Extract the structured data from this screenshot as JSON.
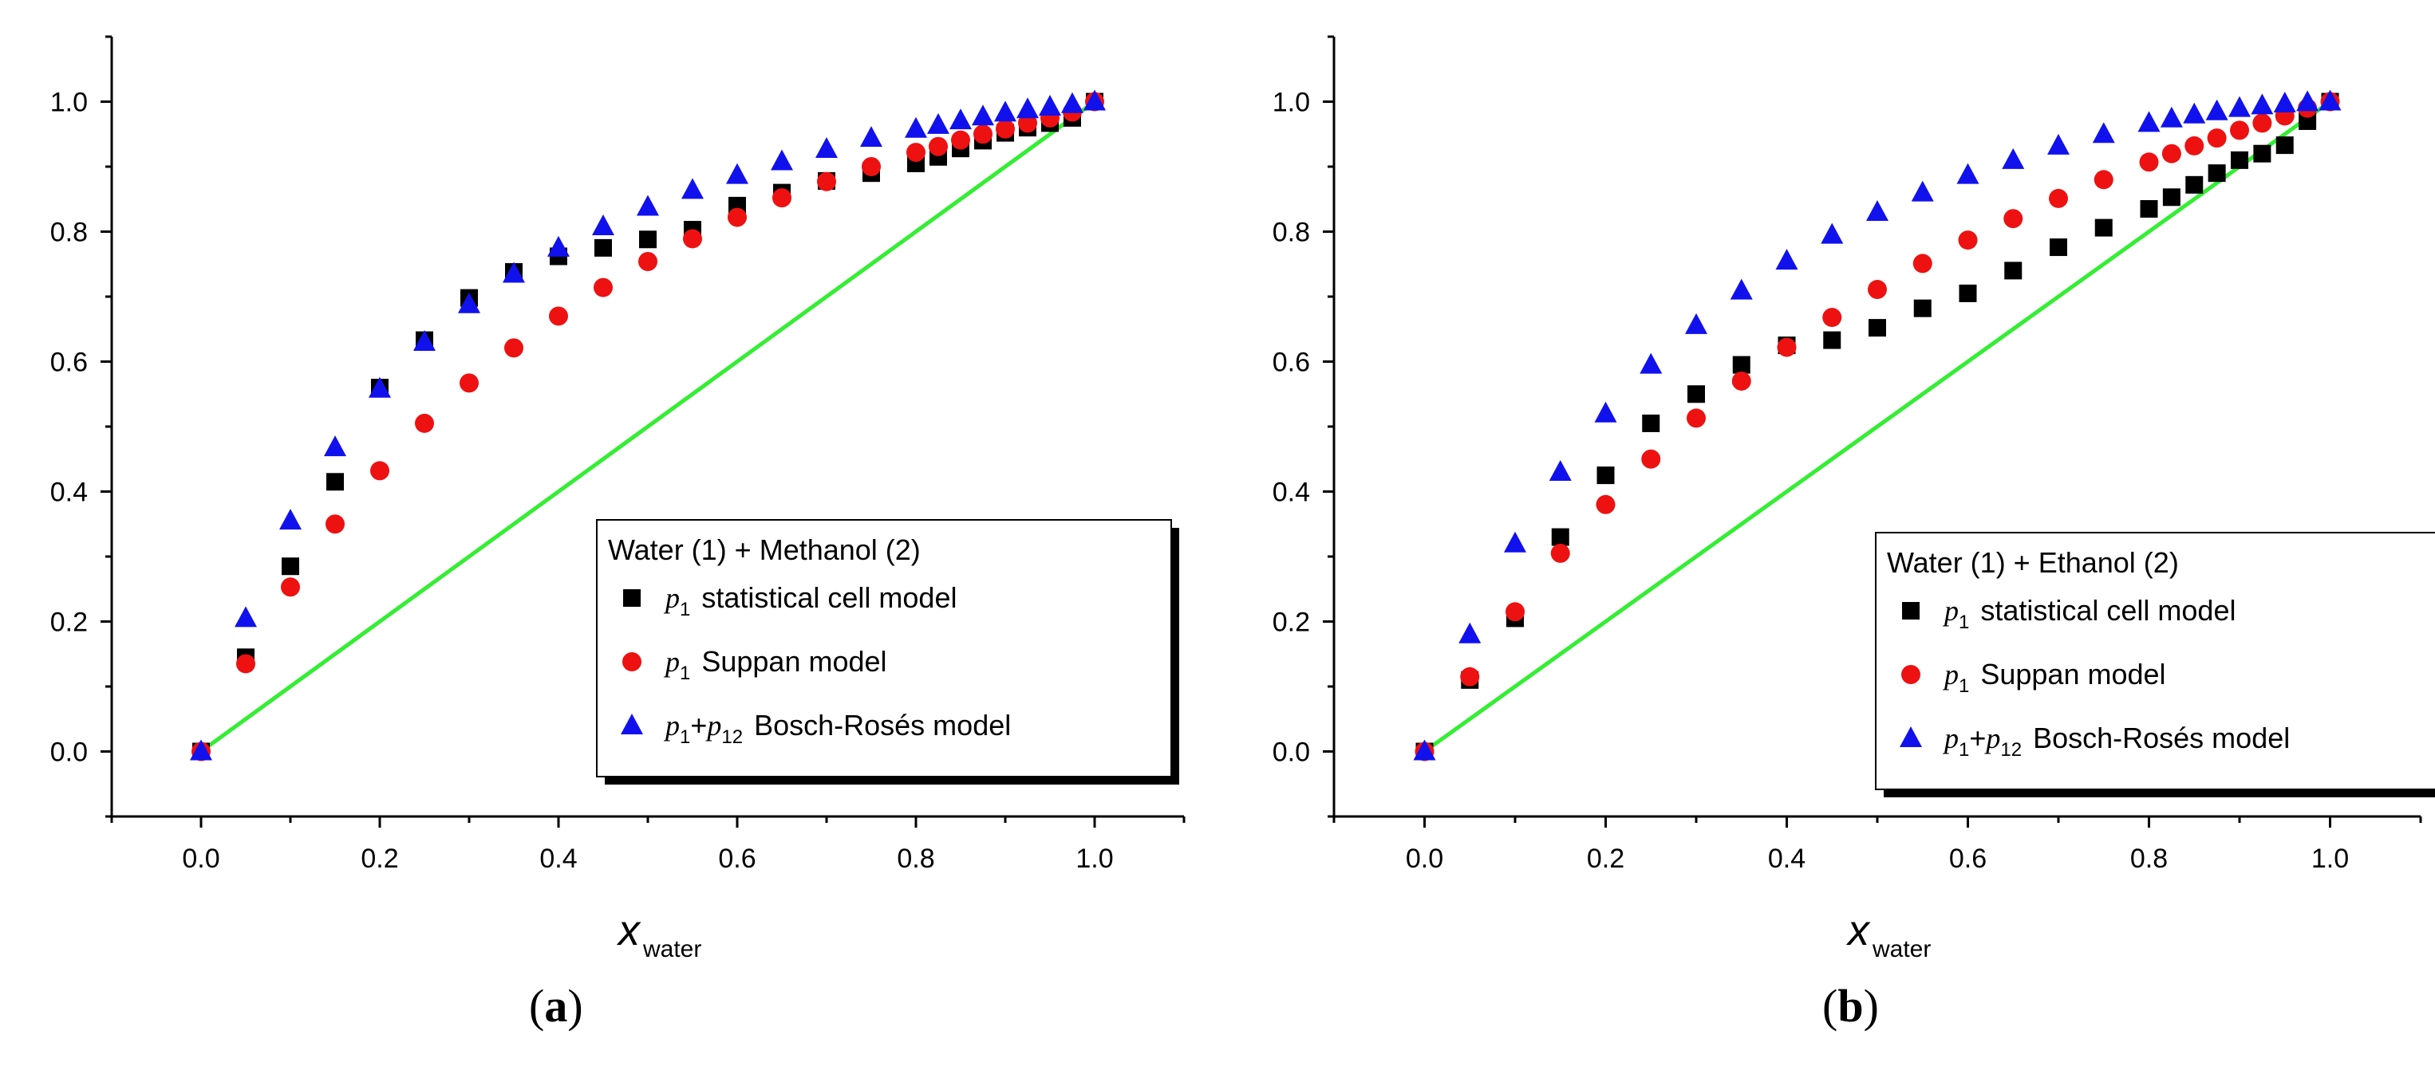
{
  "chart_data": [
    {
      "type": "scatter",
      "panel": "a",
      "caption": "a",
      "mixture_title": "Water (1) + Methanol (2)",
      "xlabel": "x",
      "xlabel_sub": "water",
      "xlim": [
        -0.1,
        1.1
      ],
      "ylim": [
        -0.1,
        1.1
      ],
      "xticks": [
        "0.0",
        "0.2",
        "0.4",
        "0.6",
        "0.8",
        "1.0"
      ],
      "yticks": [
        "0.0",
        "0.2",
        "0.4",
        "0.6",
        "0.8",
        "1.0"
      ],
      "legend_position": "bottom-right",
      "reference_line": {
        "x": [
          0,
          1
        ],
        "y": [
          0,
          1
        ],
        "color": "#33ee33"
      },
      "series": [
        {
          "name": "statistical cell model",
          "symbol": "p",
          "sub": "1",
          "marker": "square",
          "color": "#000000",
          "x": [
            0,
            0.05,
            0.1,
            0.15,
            0.2,
            0.25,
            0.3,
            0.35,
            0.4,
            0.45,
            0.5,
            0.55,
            0.6,
            0.65,
            0.7,
            0.75,
            0.8,
            0.825,
            0.85,
            0.875,
            0.9,
            0.925,
            0.95,
            0.975,
            1.0
          ],
          "y": [
            0,
            0.145,
            0.285,
            0.415,
            0.56,
            0.633,
            0.698,
            0.738,
            0.762,
            0.775,
            0.788,
            0.803,
            0.84,
            0.86,
            0.878,
            0.89,
            0.905,
            0.915,
            0.928,
            0.94,
            0.952,
            0.96,
            0.967,
            0.975,
            1.0
          ]
        },
        {
          "name": "Suppan model",
          "symbol": "p",
          "sub": "1",
          "marker": "circle",
          "color": "#ee1111",
          "x": [
            0,
            0.05,
            0.1,
            0.15,
            0.2,
            0.25,
            0.3,
            0.35,
            0.4,
            0.45,
            0.5,
            0.55,
            0.6,
            0.65,
            0.7,
            0.75,
            0.8,
            0.825,
            0.85,
            0.875,
            0.9,
            0.925,
            0.95,
            0.975,
            1.0
          ],
          "y": [
            0,
            0.135,
            0.253,
            0.35,
            0.432,
            0.505,
            0.567,
            0.621,
            0.67,
            0.714,
            0.754,
            0.789,
            0.822,
            0.852,
            0.877,
            0.9,
            0.922,
            0.931,
            0.941,
            0.95,
            0.958,
            0.967,
            0.975,
            0.984,
            1.0
          ]
        },
        {
          "name": "Bosch-Rosés model",
          "symbol": "p",
          "sub": "1",
          "symbol2": "p",
          "sub2": "12",
          "marker": "triangle",
          "color": "#1111ee",
          "x": [
            0,
            0.05,
            0.1,
            0.15,
            0.2,
            0.25,
            0.3,
            0.35,
            0.4,
            0.45,
            0.5,
            0.55,
            0.6,
            0.65,
            0.7,
            0.75,
            0.8,
            0.825,
            0.85,
            0.875,
            0.9,
            0.925,
            0.95,
            0.975,
            1.0
          ],
          "y": [
            0,
            0.205,
            0.355,
            0.468,
            0.558,
            0.63,
            0.688,
            0.735,
            0.775,
            0.808,
            0.838,
            0.864,
            0.887,
            0.908,
            0.927,
            0.944,
            0.958,
            0.964,
            0.971,
            0.977,
            0.983,
            0.988,
            0.992,
            0.996,
            1.0
          ]
        }
      ]
    },
    {
      "type": "scatter",
      "panel": "b",
      "caption": "b",
      "mixture_title": "Water (1) + Ethanol (2)",
      "xlabel": "x",
      "xlabel_sub": "water",
      "xlim": [
        -0.1,
        1.1
      ],
      "ylim": [
        -0.1,
        1.1
      ],
      "xticks": [
        "0.0",
        "0.2",
        "0.4",
        "0.6",
        "0.8",
        "1.0"
      ],
      "yticks": [
        "0.0",
        "0.2",
        "0.4",
        "0.6",
        "0.8",
        "1.0"
      ],
      "legend_position": "bottom-right",
      "reference_line": {
        "x": [
          0,
          1
        ],
        "y": [
          0,
          1
        ],
        "color": "#33ee33"
      },
      "series": [
        {
          "name": "statistical cell model",
          "symbol": "p",
          "sub": "1",
          "marker": "square",
          "color": "#000000",
          "x": [
            0,
            0.05,
            0.1,
            0.15,
            0.2,
            0.25,
            0.3,
            0.35,
            0.4,
            0.45,
            0.5,
            0.55,
            0.6,
            0.65,
            0.7,
            0.75,
            0.8,
            0.825,
            0.85,
            0.875,
            0.9,
            0.925,
            0.95,
            0.975,
            1.0
          ],
          "y": [
            0,
            0.11,
            0.205,
            0.33,
            0.425,
            0.505,
            0.55,
            0.595,
            0.625,
            0.633,
            0.652,
            0.682,
            0.705,
            0.74,
            0.776,
            0.806,
            0.835,
            0.853,
            0.872,
            0.89,
            0.91,
            0.92,
            0.933,
            0.97,
            1.0
          ]
        },
        {
          "name": "Suppan model",
          "symbol": "p",
          "sub": "1",
          "marker": "circle",
          "color": "#ee1111",
          "x": [
            0,
            0.05,
            0.1,
            0.15,
            0.2,
            0.25,
            0.3,
            0.35,
            0.4,
            0.45,
            0.5,
            0.55,
            0.6,
            0.65,
            0.7,
            0.75,
            0.8,
            0.825,
            0.85,
            0.875,
            0.9,
            0.925,
            0.95,
            0.975,
            1.0
          ],
          "y": [
            0,
            0.115,
            0.215,
            0.305,
            0.38,
            0.45,
            0.513,
            0.57,
            0.622,
            0.668,
            0.711,
            0.751,
            0.787,
            0.82,
            0.851,
            0.88,
            0.907,
            0.92,
            0.932,
            0.944,
            0.956,
            0.967,
            0.978,
            0.99,
            1.0
          ]
        },
        {
          "name": "Bosch-Rosés model",
          "symbol": "p",
          "sub": "1",
          "symbol2": "p",
          "sub2": "12",
          "marker": "triangle",
          "color": "#1111ee",
          "x": [
            0,
            0.05,
            0.1,
            0.15,
            0.2,
            0.25,
            0.3,
            0.35,
            0.4,
            0.45,
            0.5,
            0.55,
            0.6,
            0.65,
            0.7,
            0.75,
            0.8,
            0.825,
            0.85,
            0.875,
            0.9,
            0.925,
            0.95,
            0.975,
            1.0
          ],
          "y": [
            0,
            0.18,
            0.32,
            0.43,
            0.52,
            0.595,
            0.656,
            0.709,
            0.755,
            0.795,
            0.83,
            0.86,
            0.887,
            0.91,
            0.932,
            0.95,
            0.967,
            0.974,
            0.98,
            0.985,
            0.99,
            0.994,
            0.997,
            0.999,
            1.0
          ]
        }
      ]
    }
  ]
}
